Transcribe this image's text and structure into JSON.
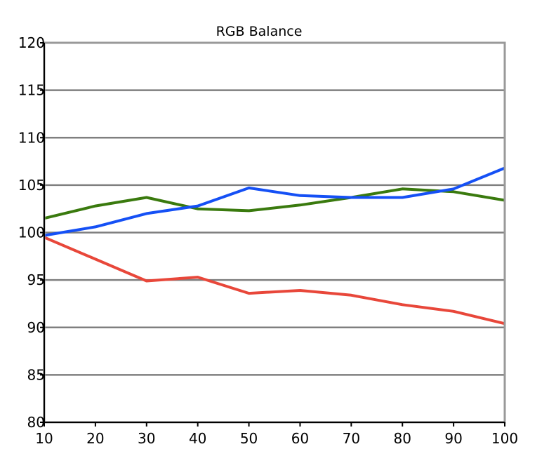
{
  "chart_data": {
    "type": "line",
    "title": "RGB Balance",
    "xlabel": "",
    "ylabel": "",
    "x": [
      10,
      20,
      30,
      40,
      50,
      60,
      70,
      80,
      90,
      100
    ],
    "xticks": [
      "10",
      "20",
      "30",
      "40",
      "50",
      "60",
      "70",
      "80",
      "90",
      "100"
    ],
    "yticks": [
      "80",
      "85",
      "90",
      "95",
      "100",
      "105",
      "110",
      "115",
      "120"
    ],
    "xlim": [
      10,
      100
    ],
    "ylim": [
      80,
      120
    ],
    "grid": "horizontal",
    "legend": "none",
    "series": [
      {
        "color": "#e8473a",
        "values": [
          99.5,
          97.2,
          94.9,
          95.3,
          93.6,
          93.9,
          93.4,
          92.4,
          91.7,
          90.4
        ]
      },
      {
        "color": "#3a7a0e",
        "values": [
          101.5,
          102.8,
          103.7,
          102.5,
          102.3,
          102.9,
          103.7,
          104.6,
          104.3,
          103.4
        ]
      },
      {
        "color": "#1550f5",
        "values": [
          99.7,
          100.6,
          102.0,
          102.8,
          104.7,
          103.9,
          103.7,
          103.7,
          104.6,
          106.8
        ]
      }
    ]
  }
}
